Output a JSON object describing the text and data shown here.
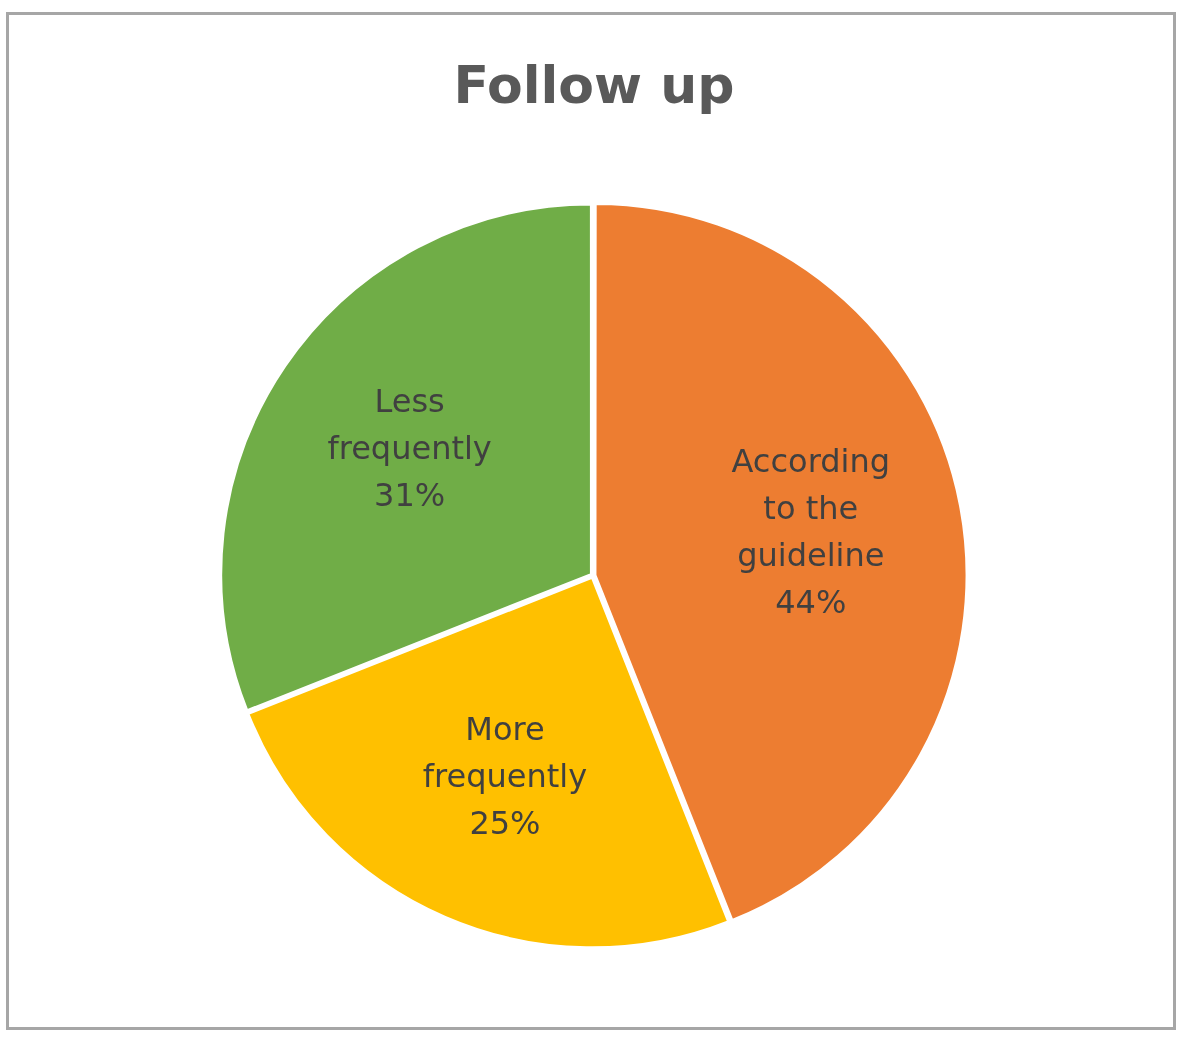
{
  "chart_data": {
    "type": "pie",
    "title": "Follow up",
    "categories": [
      "According to the guideline",
      "More frequently",
      "Less frequently"
    ],
    "values": [
      44,
      25,
      31
    ],
    "colors": [
      "#ed7d31",
      "#ffc000",
      "#70ad47"
    ],
    "value_labels": [
      "44%",
      "25%",
      "31%"
    ],
    "legend": false
  }
}
